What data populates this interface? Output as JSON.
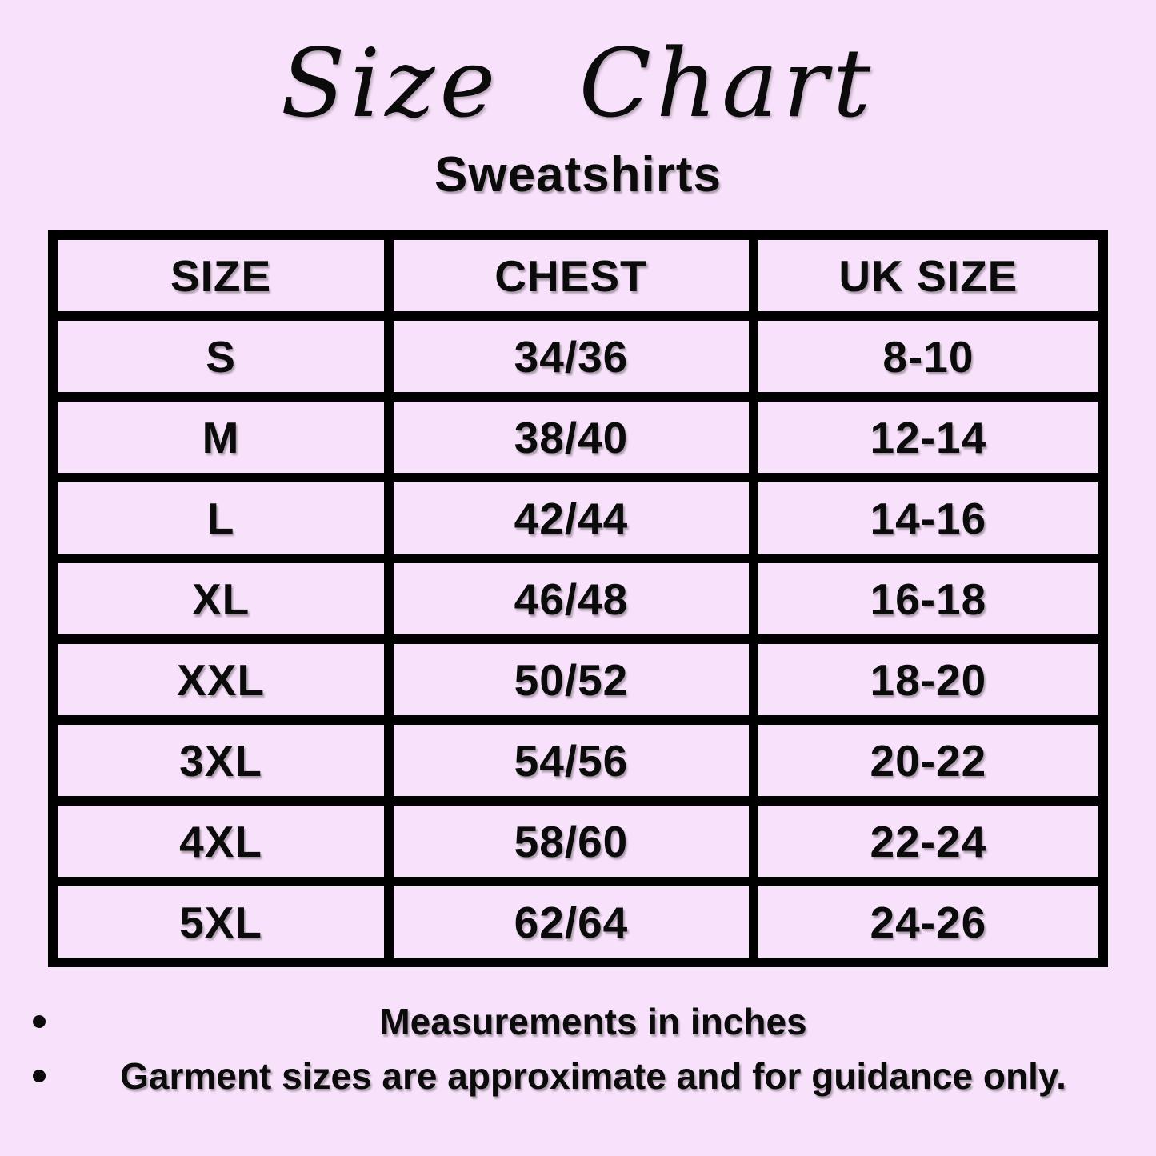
{
  "page": {
    "title": "Size Chart",
    "subtitle": "Sweatshirts",
    "colors": {
      "background": "#f8e1fa",
      "text": "#0b0b0b",
      "table_border": "#000000"
    }
  },
  "table": {
    "columns": [
      "SIZE",
      "CHEST",
      "UK SIZE"
    ],
    "rows": [
      {
        "size": "S",
        "chest": "34/36",
        "uk_size": "8-10"
      },
      {
        "size": "M",
        "chest": "38/40",
        "uk_size": "12-14"
      },
      {
        "size": "L",
        "chest": "42/44",
        "uk_size": "14-16"
      },
      {
        "size": "XL",
        "chest": "46/48",
        "uk_size": "16-18"
      },
      {
        "size": "XXL",
        "chest": "50/52",
        "uk_size": "18-20"
      },
      {
        "size": "3XL",
        "chest": "54/56",
        "uk_size": "20-22"
      },
      {
        "size": "4XL",
        "chest": "58/60",
        "uk_size": "22-24"
      },
      {
        "size": "5XL",
        "chest": "62/64",
        "uk_size": "24-26"
      }
    ]
  },
  "notes": [
    "Measurements in inches",
    "Garment sizes are approximate and for guidance only."
  ]
}
